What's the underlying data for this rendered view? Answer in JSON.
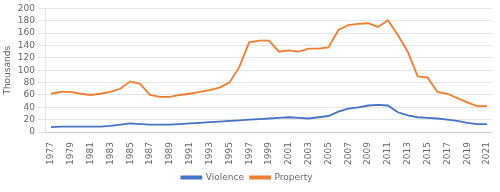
{
  "chart_data": {
    "type": "line",
    "x": [
      1977,
      1978,
      1979,
      1980,
      1981,
      1982,
      1983,
      1984,
      1985,
      1986,
      1987,
      1988,
      1989,
      1990,
      1991,
      1992,
      1993,
      1994,
      1995,
      1996,
      1997,
      1998,
      1999,
      2000,
      2001,
      2002,
      2003,
      2004,
      2005,
      2006,
      2007,
      2008,
      2009,
      2010,
      2011,
      2012,
      2013,
      2014,
      2015,
      2016,
      2017,
      2018,
      2019,
      2020,
      2021
    ],
    "series": [
      {
        "name": "Violence",
        "color": "#4472c4",
        "values": [
          8,
          9,
          9,
          9,
          9,
          9,
          10,
          12,
          14,
          13,
          12,
          12,
          12,
          13,
          14,
          15,
          16,
          17,
          18,
          19,
          20,
          21,
          22,
          23,
          24,
          23,
          22,
          24,
          26,
          33,
          38,
          40,
          43,
          44,
          43,
          32,
          27,
          24,
          23,
          22,
          20,
          18,
          15,
          13,
          13
        ]
      },
      {
        "name": "Property",
        "color": "#ed7d31",
        "values": [
          62,
          65,
          65,
          62,
          60,
          62,
          65,
          70,
          82,
          78,
          60,
          57,
          57,
          60,
          62,
          65,
          68,
          72,
          80,
          105,
          145,
          148,
          148,
          130,
          132,
          130,
          135,
          135,
          137,
          165,
          173,
          175,
          176,
          170,
          181,
          157,
          130,
          90,
          88,
          65,
          62,
          55,
          48,
          42,
          42
        ]
      }
    ],
    "y_label": "Thousands",
    "xlim": [
      1976.5,
      2021.5
    ],
    "xticks": [
      1977,
      1979,
      1981,
      1983,
      1985,
      1987,
      1989,
      1991,
      1993,
      1995,
      1997,
      1999,
      2001,
      2003,
      2005,
      2007,
      2009,
      2011,
      2013,
      2015,
      2017,
      2019,
      2021
    ],
    "ylim": [
      0,
      200
    ],
    "yticks": [
      0,
      20,
      40,
      60,
      80,
      100,
      120,
      140,
      160,
      180,
      200
    ],
    "grid": "y",
    "legend": "bottom"
  }
}
